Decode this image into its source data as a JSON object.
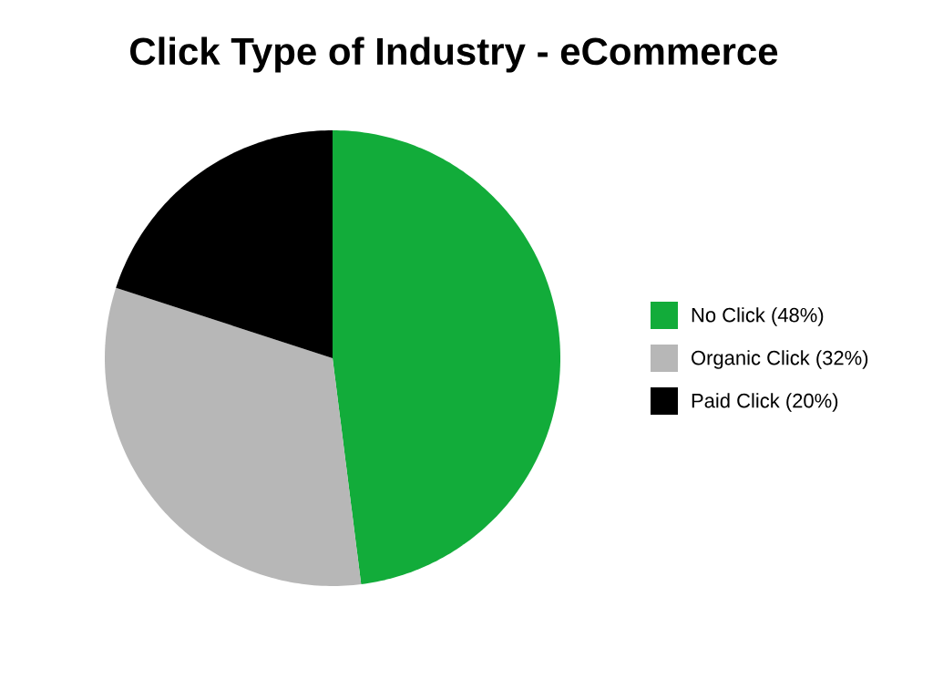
{
  "chart_data": {
    "type": "pie",
    "title": "Click Type of Industry - eCommerce",
    "categories": [
      "No Click (48%)",
      "Organic Click (32%)",
      "Paid Click (20%)"
    ],
    "values": [
      48,
      32,
      20
    ],
    "colors": [
      "#12ac3a",
      "#b7b7b7",
      "#000000"
    ],
    "legend": "right"
  }
}
